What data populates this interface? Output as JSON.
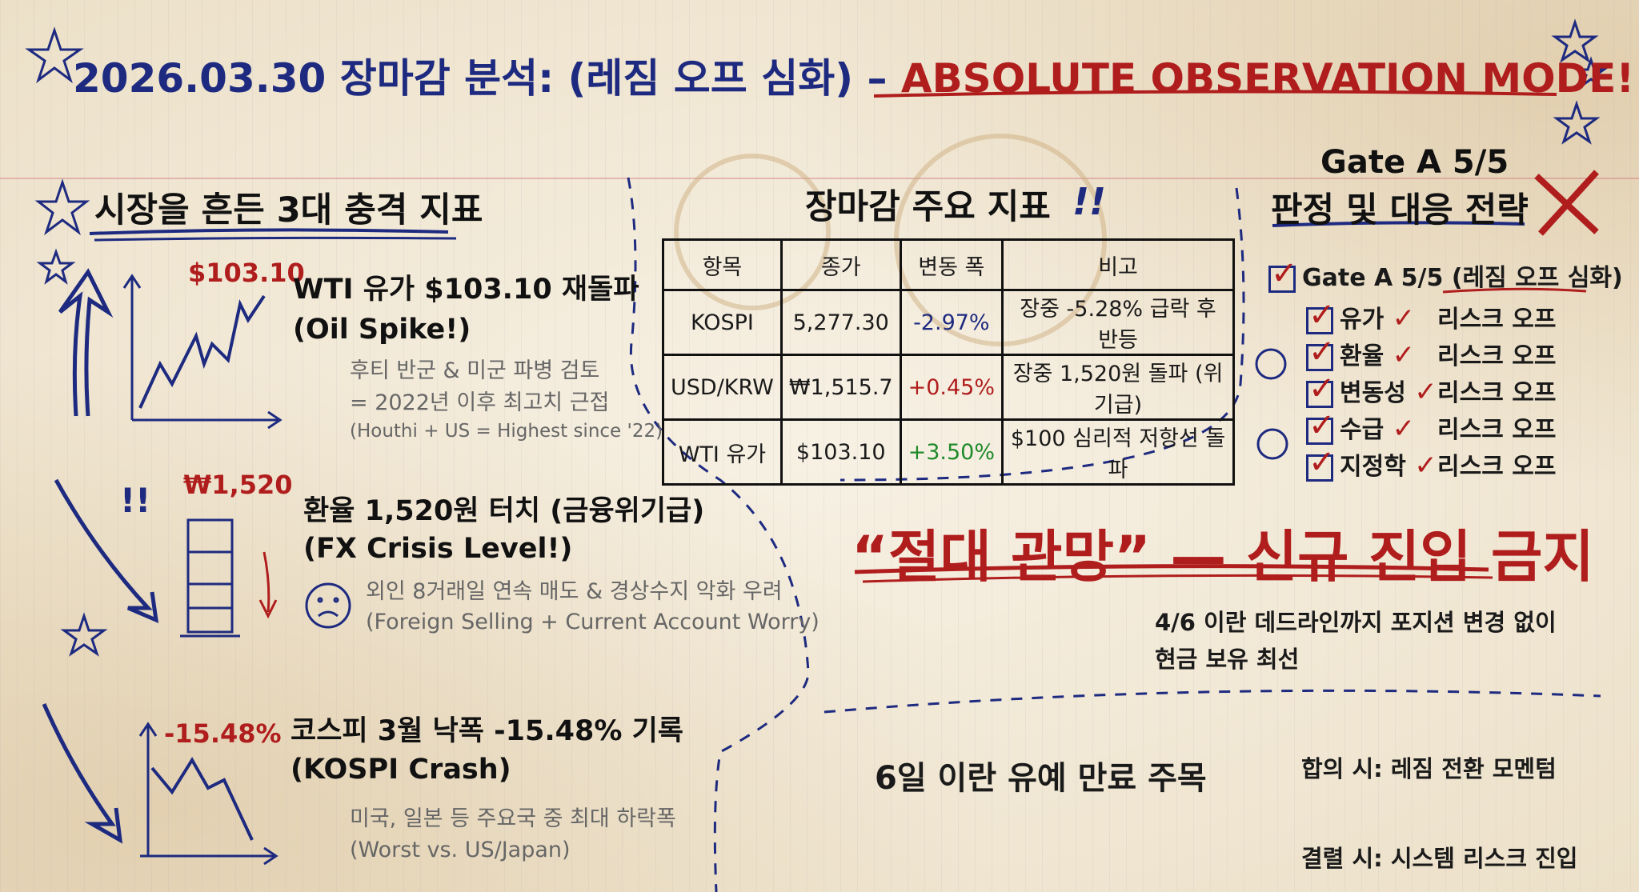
{
  "title": {
    "main": "2026.03.30 장마감 분석: (레짐 오프 심화) –",
    "highlight": "ABSOLUTE OBSERVATION MODE!"
  },
  "shocks": {
    "heading": "시장을 흔든 3대 충격 지표",
    "items": [
      {
        "value": "$103.10",
        "title": "WTI 유가 $103.10 재돌파",
        "subtitle": "(Oil Spike!)",
        "notes": [
          "후티 반군 & 미군 파병 검토",
          "= 2022년 이후 최고치 근접",
          "(Houthi + US = Highest since '22)"
        ],
        "icon": "rising-chart-icon"
      },
      {
        "value": "₩1,520",
        "title": "환율 1,520원 터치 (금융위기급)",
        "subtitle": "(FX Crisis Level!)",
        "notes": [
          "외인 8거래일 연속 매도 & 경상수지 악화 우려",
          "(Foreign Selling + Current Account Worry)"
        ],
        "icon": "leaning-tower-icon"
      },
      {
        "value": "-15.48%",
        "title": "코스피 3월 낙폭 -15.48% 기록",
        "subtitle": "(KOSPI Crash)",
        "notes": [
          "미국, 일본 등 주요국 중 최대 하락폭",
          "(Worst vs. US/Japan)"
        ],
        "icon": "falling-chart-icon"
      }
    ]
  },
  "indicators": {
    "heading": "장마감 주요 지표",
    "exclaim": "!!",
    "columns": [
      "항목",
      "종가",
      "변동 폭",
      "비고"
    ],
    "rows": [
      {
        "item": "KOSPI",
        "close": "5,277.30",
        "change": "-2.97%",
        "note": "장중 -5.28% 급락 후 반등",
        "change_color": "#1d2a80"
      },
      {
        "item": "USD/KRW",
        "close": "₩1,515.7",
        "change": "+0.45%",
        "note": "장중 1,520원 돌파 (위기급)",
        "change_color": "#b01d1d"
      },
      {
        "item": "WTI 유가",
        "close": "$103.10",
        "change": "+3.50%",
        "note": "$100 심리적 저항선 돌파",
        "change_color": "#1f8a2a"
      }
    ]
  },
  "gate": {
    "heading1": "Gate A 5/5",
    "heading2": "판정 및 대응 전략",
    "main_check": "Gate A 5/5",
    "main_check_tag": "(레짐 오프 심화)",
    "checks": [
      {
        "label": "유가",
        "status": "리스크 오프"
      },
      {
        "label": "환율",
        "status": "리스크 오프"
      },
      {
        "label": "변동성",
        "status": "리스크 오프"
      },
      {
        "label": "수급",
        "status": "리스크 오프"
      },
      {
        "label": "지정학",
        "status": "리스크 오프"
      }
    ]
  },
  "strategy": {
    "banner": "“절대 관망” — 신규 진입 금지",
    "body": [
      "4/6 이란 데드라인까지 포지션 변경 없이",
      "현금 보유 최선"
    ]
  },
  "watch": {
    "headline": "6일 이란 유예 만료 주목",
    "if_agree": "합의 시: 레짐 전환 모멘텀",
    "if_fail": "결렬 시: 시스템 리스크 진입"
  },
  "colors": {
    "navy": "#1d2a80",
    "red": "#b01d1d",
    "green": "#1f8a2a",
    "paper": "#f3ebdc"
  }
}
